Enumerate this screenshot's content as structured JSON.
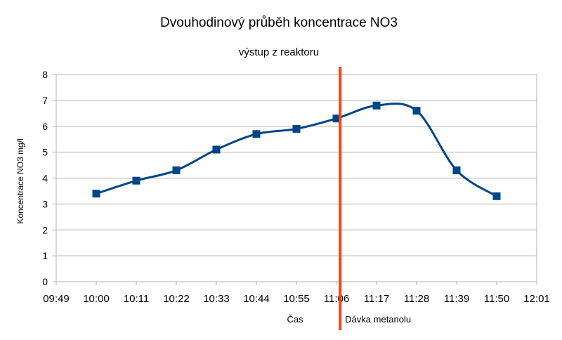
{
  "chart_data": {
    "type": "line",
    "title": "Dvouhodinový průběh koncentrace NO3",
    "subtitle": "výstup z reaktoru",
    "xlabel": "Čas",
    "ylabel": "Koncentrace NO3 mg/l",
    "ylim": [
      0,
      8
    ],
    "yticks": [
      "0",
      "1",
      "2",
      "3",
      "4",
      "5",
      "6",
      "7",
      "8"
    ],
    "xticks": [
      "09:49",
      "10:00",
      "10:11",
      "10:22",
      "10:33",
      "10:44",
      "10:55",
      "11:06",
      "11:17",
      "11:28",
      "11:39",
      "11:50",
      "12:01"
    ],
    "grid": true,
    "legend": "none",
    "series": [
      {
        "color": "#004586",
        "smooth": true,
        "marker": "square",
        "points": [
          {
            "x": "10:00",
            "y": 3.4
          },
          {
            "x": "10:11",
            "y": 3.9
          },
          {
            "x": "10:22",
            "y": 4.3
          },
          {
            "x": "10:33",
            "y": 5.1
          },
          {
            "x": "10:44",
            "y": 5.7
          },
          {
            "x": "10:55",
            "y": 5.9
          },
          {
            "x": "11:06",
            "y": 6.3
          },
          {
            "x": "11:17",
            "y": 6.8
          },
          {
            "x": "11:28",
            "y": 6.6
          },
          {
            "x": "11:39",
            "y": 4.3
          },
          {
            "x": "11:50",
            "y": 3.3
          }
        ]
      }
    ],
    "annotation": {
      "label": "Dávka metanolu",
      "x": "11:07",
      "color": "#ff420e"
    }
  }
}
